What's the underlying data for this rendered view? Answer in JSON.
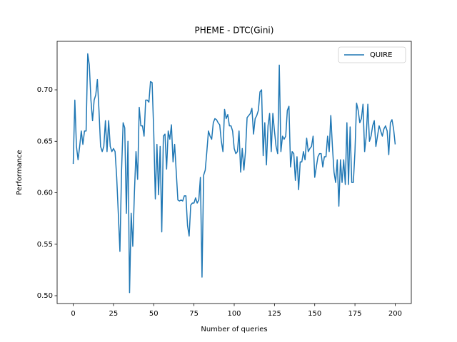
{
  "chart_data": {
    "type": "line",
    "title": "PHEME - DTC(Gini)",
    "xlabel": "Number of queries",
    "ylabel": "Performance",
    "x": [
      0,
      1,
      2,
      3,
      4,
      5,
      6,
      7,
      8,
      9,
      10,
      11,
      12,
      13,
      14,
      15,
      16,
      17,
      18,
      19,
      20,
      21,
      22,
      23,
      24,
      25,
      26,
      27,
      28,
      29,
      30,
      31,
      32,
      33,
      34,
      35,
      36,
      37,
      38,
      39,
      40,
      41,
      42,
      43,
      44,
      45,
      46,
      47,
      48,
      49,
      50,
      51,
      52,
      53,
      54,
      55,
      56,
      57,
      58,
      59,
      60,
      61,
      62,
      63,
      64,
      65,
      66,
      67,
      68,
      69,
      70,
      71,
      72,
      73,
      74,
      75,
      76,
      77,
      78,
      79,
      80,
      81,
      82,
      83,
      84,
      85,
      86,
      87,
      88,
      89,
      90,
      91,
      92,
      93,
      94,
      95,
      96,
      97,
      98,
      99,
      100,
      101,
      102,
      103,
      104,
      105,
      106,
      107,
      108,
      109,
      110,
      111,
      112,
      113,
      114,
      115,
      116,
      117,
      118,
      119,
      120,
      121,
      122,
      123,
      124,
      125,
      126,
      127,
      128,
      129,
      130,
      131,
      132,
      133,
      134,
      135,
      136,
      137,
      138,
      139,
      140,
      141,
      142,
      143,
      144,
      145,
      146,
      147,
      148,
      149,
      150,
      151,
      152,
      153,
      154,
      155,
      156,
      157,
      158,
      159,
      160,
      161,
      162,
      163,
      164,
      165,
      166,
      167,
      168,
      169,
      170,
      171,
      172,
      173,
      174,
      175,
      176,
      177,
      178,
      179,
      180,
      181,
      182,
      183,
      184,
      185,
      186,
      187,
      188,
      189,
      190,
      191,
      192,
      193,
      194,
      195,
      196,
      197,
      198,
      199,
      200
    ],
    "series": [
      {
        "name": "QUIRE",
        "color": "#1f77b4",
        "values": [
          0.628,
          0.69,
          0.645,
          0.632,
          0.645,
          0.66,
          0.647,
          0.66,
          0.66,
          0.735,
          0.724,
          0.69,
          0.67,
          0.69,
          0.695,
          0.71,
          0.68,
          0.645,
          0.64,
          0.645,
          0.67,
          0.64,
          0.67,
          0.645,
          0.64,
          0.643,
          0.64,
          0.615,
          0.58,
          0.543,
          0.62,
          0.668,
          0.663,
          0.58,
          0.65,
          0.503,
          0.58,
          0.548,
          0.6,
          0.64,
          0.613,
          0.683,
          0.665,
          0.665,
          0.655,
          0.69,
          0.69,
          0.688,
          0.708,
          0.707,
          0.66,
          0.594,
          0.647,
          0.598,
          0.645,
          0.562,
          0.655,
          0.657,
          0.623,
          0.66,
          0.652,
          0.666,
          0.63,
          0.647,
          0.62,
          0.593,
          0.592,
          0.593,
          0.592,
          0.597,
          0.597,
          0.568,
          0.558,
          0.588,
          0.59,
          0.59,
          0.595,
          0.59,
          0.593,
          0.615,
          0.518,
          0.617,
          0.622,
          0.64,
          0.66,
          0.655,
          0.652,
          0.668,
          0.672,
          0.671,
          0.668,
          0.666,
          0.65,
          0.64,
          0.681,
          0.672,
          0.676,
          0.665,
          0.665,
          0.66,
          0.643,
          0.638,
          0.64,
          0.66,
          0.62,
          0.643,
          0.622,
          0.64,
          0.673,
          0.675,
          0.677,
          0.682,
          0.657,
          0.672,
          0.675,
          0.68,
          0.698,
          0.7,
          0.636,
          0.668,
          0.627,
          0.665,
          0.677,
          0.64,
          0.677,
          0.66,
          0.645,
          0.638,
          0.724,
          0.64,
          0.655,
          0.652,
          0.655,
          0.68,
          0.684,
          0.625,
          0.64,
          0.638,
          0.612,
          0.635,
          0.603,
          0.63,
          0.63,
          0.64,
          0.632,
          0.653,
          0.64,
          0.643,
          0.645,
          0.655,
          0.615,
          0.625,
          0.635,
          0.638,
          0.638,
          0.625,
          0.635,
          0.635,
          0.655,
          0.64,
          0.675,
          0.645,
          0.62,
          0.61,
          0.632,
          0.587,
          0.632,
          0.61,
          0.632,
          0.608,
          0.668,
          0.608,
          0.664,
          0.61,
          0.61,
          0.64,
          0.687,
          0.68,
          0.668,
          0.672,
          0.686,
          0.64,
          0.655,
          0.686,
          0.65,
          0.655,
          0.665,
          0.67,
          0.645,
          0.655,
          0.665,
          0.66,
          0.655,
          0.662,
          0.665,
          0.66,
          0.637,
          0.668,
          0.671,
          0.662,
          0.647
        ]
      }
    ],
    "xlim": [
      -10,
      210
    ],
    "ylim": [
      0.4924,
      0.7471
    ],
    "xticks": [
      0,
      25,
      50,
      75,
      100,
      125,
      150,
      175,
      200
    ],
    "yticks": [
      {
        "value": 0.5,
        "label": "0.50"
      },
      {
        "value": 0.55,
        "label": "0.55"
      },
      {
        "value": 0.6,
        "label": "0.60"
      },
      {
        "value": 0.65,
        "label": "0.65"
      },
      {
        "value": 0.7,
        "label": "0.70"
      }
    ],
    "legend": "upper right",
    "grid": false
  }
}
